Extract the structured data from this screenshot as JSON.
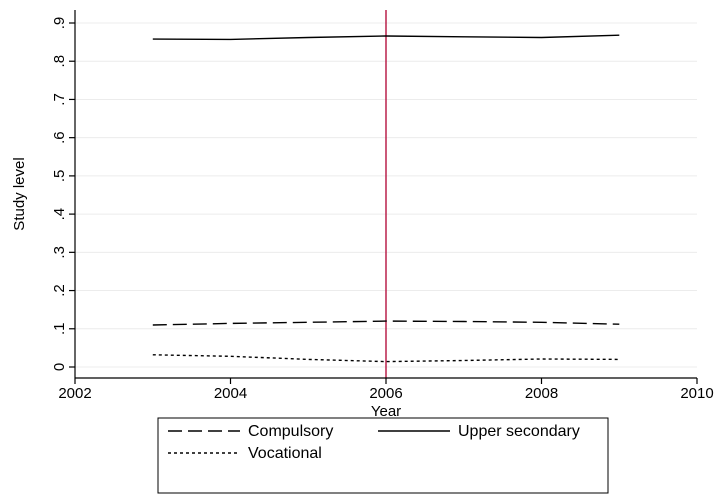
{
  "chart_data": {
    "type": "line",
    "title": "",
    "xlabel": "Year",
    "ylabel": "Study level",
    "xlim": [
      2002,
      2010
    ],
    "ylim": [
      0,
      0.9
    ],
    "x_ticks": [
      2002,
      2004,
      2006,
      2008,
      2010
    ],
    "x_tick_labels": [
      "2002",
      "2004",
      "2006",
      "2008",
      "2010"
    ],
    "y_ticks": [
      0,
      0.1,
      0.2,
      0.3,
      0.4,
      0.5,
      0.6,
      0.7,
      0.8,
      0.9
    ],
    "y_tick_labels": [
      "0",
      ".1",
      ".2",
      ".3",
      ".4",
      ".5",
      ".6",
      ".7",
      ".8",
      ".9"
    ],
    "grid": "horizontal",
    "reference_line": {
      "x": 2006,
      "color": "#b5123f"
    },
    "x": [
      2003,
      2004,
      2005,
      2006,
      2007,
      2008,
      2009
    ],
    "series": [
      {
        "name": "Compulsory",
        "style": "longdash",
        "color": "#000000",
        "values": [
          0.11,
          0.114,
          0.117,
          0.12,
          0.119,
          0.117,
          0.112
        ]
      },
      {
        "name": "Upper secondary",
        "style": "solid",
        "color": "#000000",
        "values": [
          0.858,
          0.857,
          0.862,
          0.866,
          0.864,
          0.862,
          0.868
        ]
      },
      {
        "name": "Vocational",
        "style": "shortdash",
        "color": "#000000",
        "values": [
          0.032,
          0.028,
          0.02,
          0.014,
          0.017,
          0.021,
          0.02
        ]
      }
    ],
    "legend_position": "bottom"
  }
}
